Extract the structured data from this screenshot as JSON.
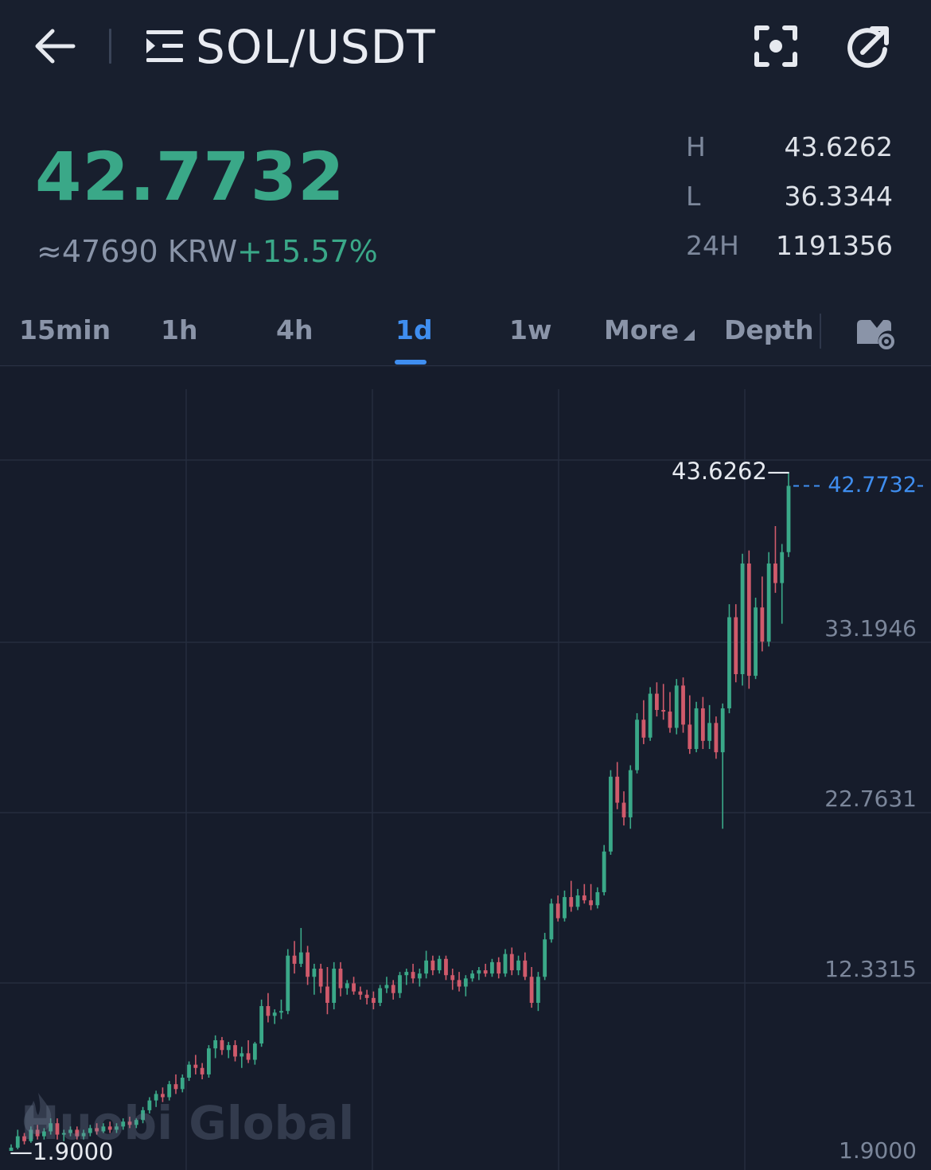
{
  "header": {
    "pair": "SOL/USDT",
    "icons": {
      "back": "arrow-left-icon",
      "menu": "menu-list-icon",
      "focus": "focus-icon",
      "share": "refresh-share-icon"
    }
  },
  "ticker": {
    "last_price": "42.7732",
    "converted": "≈47690 KRW",
    "change_pct": "+15.57%",
    "stats": [
      {
        "key": "H",
        "value": "43.6262"
      },
      {
        "key": "L",
        "value": "36.3344"
      },
      {
        "key": "24H",
        "value": "1191356"
      }
    ]
  },
  "tabs": {
    "items": [
      "15min",
      "1h",
      "4h",
      "1d",
      "1w",
      "More",
      "Depth"
    ],
    "active": "1d",
    "settings_icon": "chart-settings-icon"
  },
  "colors": {
    "up": "#3aa888",
    "down": "#d05a6b",
    "accent": "#3f8ef0",
    "background": "#181f2e"
  },
  "chart_data": {
    "type": "candlestick",
    "interval": "1d",
    "y_ticks": [
      "1.9000",
      "12.3315",
      "22.7631",
      "33.1946"
    ],
    "y_range": [
      1.9,
      43.6262
    ],
    "high_marker": "43.6262",
    "low_marker": "1.9000",
    "last_price_label": "42.7732",
    "watermark": "Huobi Global",
    "candles": [
      [
        1.9,
        2.3,
        1.9,
        2.1
      ],
      [
        2.1,
        3.2,
        2.0,
        2.8
      ],
      [
        2.8,
        3.0,
        2.3,
        2.5
      ],
      [
        2.5,
        3.4,
        2.4,
        3.2
      ],
      [
        3.2,
        3.5,
        2.6,
        2.8
      ],
      [
        2.8,
        3.3,
        2.6,
        3.1
      ],
      [
        3.1,
        3.9,
        2.9,
        3.6
      ],
      [
        3.6,
        3.9,
        2.6,
        2.9
      ],
      [
        2.9,
        3.2,
        2.5,
        3.0
      ],
      [
        3.0,
        3.4,
        2.8,
        3.2
      ],
      [
        3.2,
        3.4,
        2.6,
        2.8
      ],
      [
        2.8,
        3.2,
        2.6,
        3.0
      ],
      [
        3.0,
        3.5,
        2.8,
        3.3
      ],
      [
        3.3,
        3.6,
        2.9,
        3.1
      ],
      [
        3.1,
        3.6,
        3.0,
        3.4
      ],
      [
        3.4,
        3.7,
        3.0,
        3.2
      ],
      [
        3.2,
        3.6,
        3.0,
        3.4
      ],
      [
        3.4,
        3.9,
        3.2,
        3.7
      ],
      [
        3.7,
        4.0,
        3.3,
        3.5
      ],
      [
        3.5,
        3.9,
        3.3,
        3.8
      ],
      [
        3.8,
        4.6,
        3.6,
        4.4
      ],
      [
        4.4,
        5.2,
        4.2,
        5.0
      ],
      [
        5.0,
        5.6,
        4.6,
        5.4
      ],
      [
        5.4,
        5.8,
        4.9,
        5.2
      ],
      [
        5.2,
        6.2,
        5.0,
        6.0
      ],
      [
        6.0,
        6.6,
        5.4,
        5.7
      ],
      [
        5.7,
        6.6,
        5.5,
        6.4
      ],
      [
        6.4,
        7.4,
        6.2,
        7.2
      ],
      [
        7.2,
        7.8,
        6.6,
        7.0
      ],
      [
        7.0,
        7.3,
        6.3,
        6.6
      ],
      [
        6.6,
        8.4,
        6.4,
        8.2
      ],
      [
        8.2,
        9.0,
        7.6,
        8.7
      ],
      [
        8.7,
        8.9,
        7.8,
        8.1
      ],
      [
        8.1,
        8.6,
        7.6,
        8.4
      ],
      [
        8.4,
        8.7,
        7.4,
        7.7
      ],
      [
        7.7,
        8.3,
        7.0,
        7.9
      ],
      [
        7.9,
        8.7,
        7.3,
        7.5
      ],
      [
        7.5,
        8.6,
        7.2,
        8.5
      ],
      [
        8.5,
        11.2,
        8.3,
        10.8
      ],
      [
        10.8,
        11.6,
        9.8,
        10.2
      ],
      [
        10.2,
        10.6,
        9.7,
        10.4
      ],
      [
        10.4,
        11.2,
        10.0,
        10.5
      ],
      [
        10.5,
        14.3,
        10.3,
        13.9
      ],
      [
        13.9,
        14.8,
        12.8,
        13.4
      ],
      [
        13.4,
        15.6,
        13.2,
        14.1
      ],
      [
        14.1,
        14.5,
        12.1,
        12.6
      ],
      [
        12.6,
        13.4,
        11.5,
        13.1
      ],
      [
        13.1,
        13.4,
        11.6,
        12.0
      ],
      [
        12.0,
        13.2,
        10.3,
        11.0
      ],
      [
        11.0,
        13.5,
        10.6,
        13.1
      ],
      [
        13.1,
        13.5,
        11.4,
        11.9
      ],
      [
        11.9,
        12.4,
        11.5,
        12.2
      ],
      [
        12.2,
        12.6,
        11.5,
        11.7
      ],
      [
        11.7,
        12.0,
        11.2,
        11.5
      ],
      [
        11.5,
        11.8,
        10.9,
        11.3
      ],
      [
        11.3,
        11.7,
        10.6,
        11.0
      ],
      [
        11.0,
        12.1,
        10.8,
        11.9
      ],
      [
        11.9,
        12.6,
        11.6,
        12.1
      ],
      [
        12.1,
        12.4,
        11.2,
        11.6
      ],
      [
        11.6,
        12.9,
        11.3,
        12.7
      ],
      [
        12.7,
        13.1,
        12.1,
        12.9
      ],
      [
        12.9,
        13.4,
        12.2,
        12.5
      ],
      [
        12.5,
        13.1,
        12.0,
        12.8
      ],
      [
        12.8,
        14.2,
        12.5,
        13.6
      ],
      [
        13.6,
        13.9,
        12.7,
        13.0
      ],
      [
        13.0,
        13.9,
        12.8,
        13.7
      ],
      [
        13.7,
        13.9,
        12.4,
        12.7
      ],
      [
        12.7,
        13.1,
        11.8,
        12.4
      ],
      [
        12.4,
        12.9,
        11.7,
        12.0
      ],
      [
        12.0,
        12.7,
        11.4,
        12.5
      ],
      [
        12.5,
        13.0,
        12.3,
        12.8
      ],
      [
        12.8,
        13.2,
        12.4,
        13.0
      ],
      [
        13.0,
        13.4,
        12.6,
        12.8
      ],
      [
        12.8,
        13.7,
        12.6,
        13.5
      ],
      [
        13.5,
        13.8,
        12.5,
        12.8
      ],
      [
        12.8,
        14.3,
        12.6,
        14.0
      ],
      [
        14.0,
        14.4,
        12.7,
        13.0
      ],
      [
        13.0,
        13.9,
        12.7,
        13.6
      ],
      [
        13.6,
        14.1,
        12.4,
        12.6
      ],
      [
        12.6,
        13.2,
        10.7,
        11.0
      ],
      [
        11.0,
        12.9,
        10.5,
        12.6
      ],
      [
        12.6,
        15.3,
        12.4,
        14.9
      ],
      [
        14.9,
        17.4,
        14.7,
        17.1
      ],
      [
        17.1,
        17.6,
        16.0,
        16.2
      ],
      [
        16.2,
        17.9,
        16.0,
        17.5
      ],
      [
        17.5,
        18.5,
        16.6,
        16.9
      ],
      [
        16.9,
        18.0,
        16.7,
        17.6
      ],
      [
        17.6,
        18.3,
        17.1,
        17.3
      ],
      [
        17.3,
        18.3,
        16.7,
        17.0
      ],
      [
        17.0,
        18.1,
        16.8,
        17.8
      ],
      [
        17.8,
        20.7,
        17.6,
        20.3
      ],
      [
        20.3,
        25.3,
        20.1,
        24.9
      ],
      [
        24.9,
        25.8,
        22.9,
        23.3
      ],
      [
        23.3,
        24.0,
        21.9,
        22.4
      ],
      [
        22.4,
        25.6,
        21.7,
        25.3
      ],
      [
        25.3,
        28.8,
        25.1,
        28.4
      ],
      [
        28.4,
        29.6,
        26.9,
        27.3
      ],
      [
        27.3,
        30.4,
        27.1,
        30.0
      ],
      [
        30.0,
        30.7,
        28.6,
        29.0
      ],
      [
        29.0,
        30.6,
        28.4,
        28.9
      ],
      [
        28.9,
        30.1,
        27.6,
        27.9
      ],
      [
        27.9,
        30.9,
        27.5,
        30.5
      ],
      [
        30.5,
        31.0,
        27.6,
        28.1
      ],
      [
        28.1,
        29.9,
        26.3,
        26.6
      ],
      [
        26.6,
        29.5,
        26.4,
        29.1
      ],
      [
        29.1,
        29.8,
        26.6,
        27.1
      ],
      [
        27.1,
        29.3,
        26.6,
        28.2
      ],
      [
        28.2,
        28.6,
        26.0,
        26.4
      ],
      [
        26.4,
        29.4,
        21.7,
        29.1
      ],
      [
        29.1,
        35.5,
        28.8,
        34.7
      ],
      [
        34.7,
        35.5,
        30.7,
        31.2
      ],
      [
        31.2,
        38.6,
        30.5,
        38.0
      ],
      [
        38.0,
        38.8,
        30.3,
        31.1
      ],
      [
        31.1,
        35.9,
        30.9,
        35.3
      ],
      [
        35.3,
        37.2,
        32.6,
        33.2
      ],
      [
        33.2,
        38.7,
        32.9,
        38.0
      ],
      [
        38.0,
        40.3,
        36.2,
        36.8
      ],
      [
        36.8,
        39.2,
        34.3,
        38.7
      ],
      [
        38.7,
        43.6262,
        38.4,
        42.7732
      ]
    ]
  }
}
